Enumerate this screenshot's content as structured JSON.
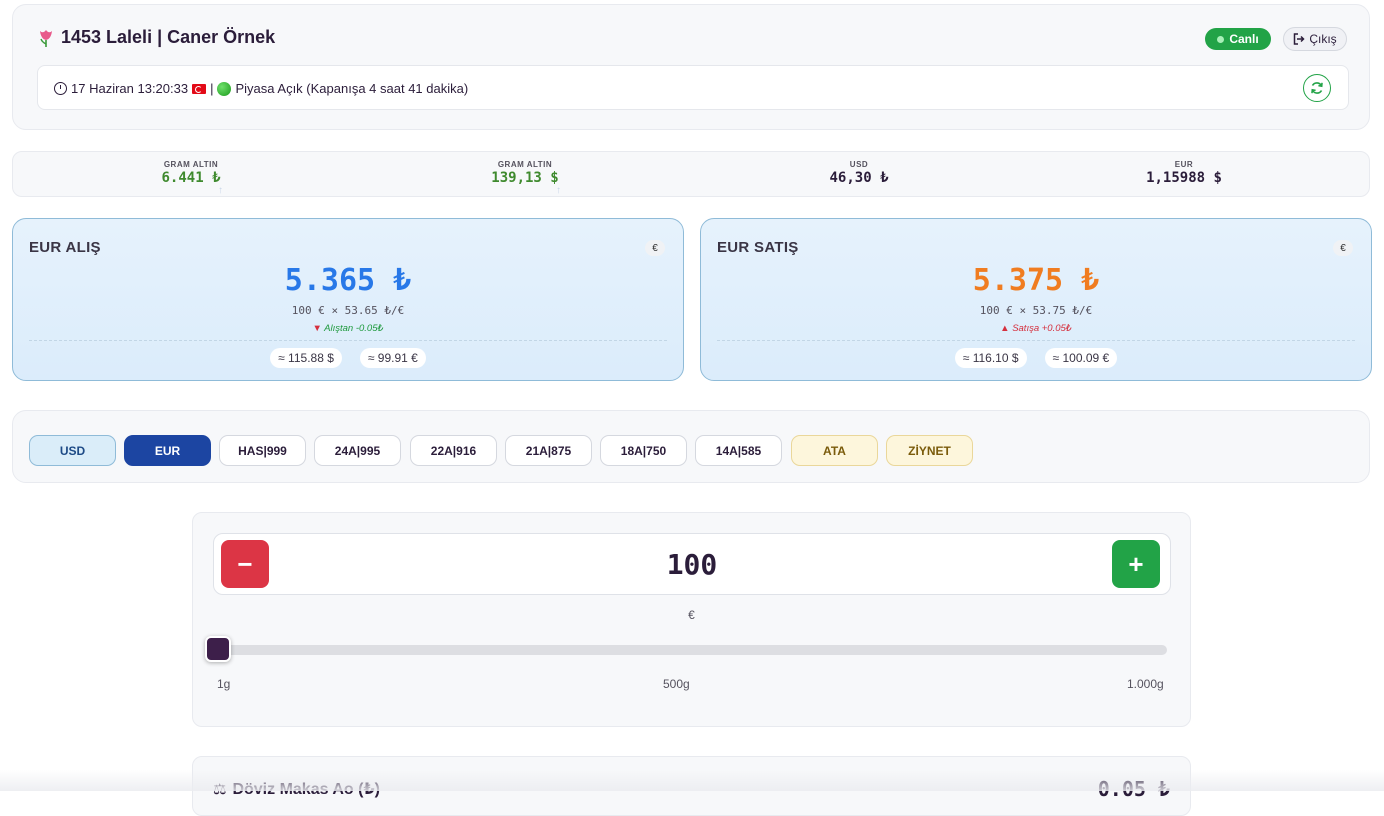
{
  "header": {
    "title": "1453 Laleli | Caner Örnek",
    "live_label": "Canlı",
    "logout_label": "Çıkış",
    "status": {
      "datetime": "17 Haziran 13:20:33",
      "separator": "|",
      "market_text": "Piyasa Açık (Kapanışa 4 saat 41 dakika)"
    }
  },
  "ticker": [
    {
      "label": "GRAM ALTIN",
      "value": "6.441 ₺",
      "color": "#3f8a2e",
      "arrow": "↑"
    },
    {
      "label": "GRAM ALTIN",
      "value": "139,13 $",
      "color": "#3f8a2e",
      "arrow": "↑"
    },
    {
      "label": "USD",
      "value": "46,30 ₺",
      "color": "#2b1d3a"
    },
    {
      "label": "EUR",
      "value": "1,15988 $",
      "color": "#2b1d3a"
    }
  ],
  "buy_card": {
    "title": "EUR ALIŞ",
    "currency_symbol": "€",
    "price": "5.365 ₺",
    "price_color": "#2878e8",
    "formula": "100 € × 53.65 ₺/€",
    "delta": "Alıştan -0.05₺",
    "delta_color": "#1f9a3e",
    "pills": [
      "≈ 115.88 $",
      "≈ 99.91 €"
    ]
  },
  "sell_card": {
    "title": "EUR SATIŞ",
    "currency_symbol": "€",
    "price": "5.375 ₺",
    "price_color": "#f07c20",
    "formula": "100 € × 53.75 ₺/€",
    "delta": "Satışa +0.05₺",
    "delta_color": "#d5303e",
    "pills": [
      "≈ 116.10 $",
      "≈ 100.09 €"
    ]
  },
  "tabs": [
    {
      "label": "USD",
      "state": "usd"
    },
    {
      "label": "EUR",
      "state": "active"
    },
    {
      "label": "HAS|999",
      "state": "normal"
    },
    {
      "label": "24A|995",
      "state": "normal"
    },
    {
      "label": "22A|916",
      "state": "normal"
    },
    {
      "label": "21A|875",
      "state": "normal"
    },
    {
      "label": "18A|750",
      "state": "normal"
    },
    {
      "label": "14A|585",
      "state": "normal"
    },
    {
      "label": "ATA",
      "state": "gold"
    },
    {
      "label": "ZİYNET",
      "state": "gold"
    }
  ],
  "calculator": {
    "minus_label": "−",
    "plus_label": "+",
    "quantity": "100",
    "unit": "€",
    "slider_min_label": "1g",
    "slider_mid_label": "500g",
    "slider_max_label": "1.000g",
    "slider_fraction": 0.0
  },
  "spread": {
    "label": "Döviz Makas Ao (₺)",
    "value": "0.05 ₺"
  }
}
